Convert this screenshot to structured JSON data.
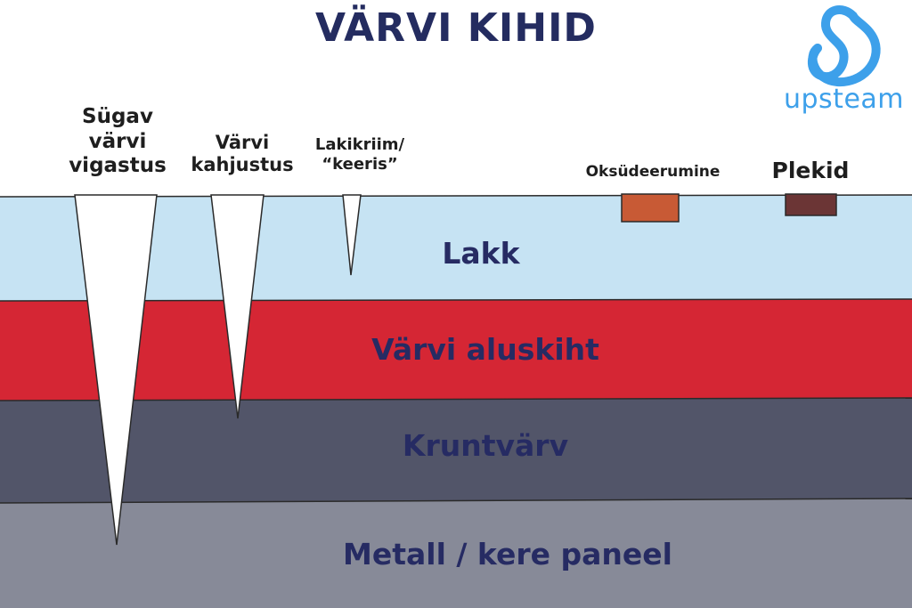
{
  "title": "VÄRVI KIHID",
  "brand": {
    "name": "upsteam",
    "color": "#3da0ea",
    "icon": "s-loop-logo-icon"
  },
  "layers": [
    {
      "name": "Lakk",
      "color": "#c6e3f3"
    },
    {
      "name": "Värvi aluskiht",
      "color": "#d52634"
    },
    {
      "name": "Kruntvärv",
      "color": "#525569"
    },
    {
      "name": "Metall / kere paneel",
      "color": "#878a98"
    }
  ],
  "defects": {
    "deep": "Sügav värvi vigastus",
    "damage": "Värvi kahjustus",
    "scratch": "Lakikriim/ “keeris”",
    "oxidation": "Oksüdeerumine",
    "spots": "Plekid"
  },
  "defect_colors": {
    "oxidation": "#c85a35",
    "spots": "#6b3535"
  }
}
